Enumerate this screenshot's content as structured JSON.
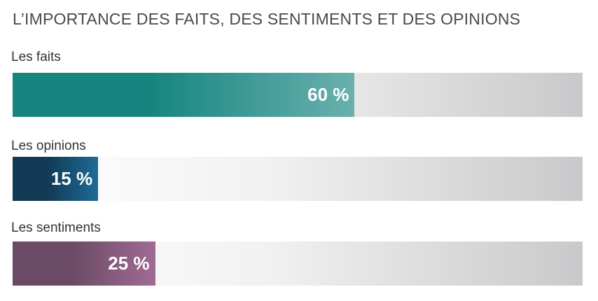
{
  "chart_data": {
    "type": "bar",
    "orientation": "horizontal",
    "title": "L’IMPORTANCE DES FAITS, DES SENTIMENTS ET DES OPINIONS",
    "xlim": [
      0,
      100
    ],
    "unit": "%",
    "categories": [
      "Les faits",
      "Les opinions",
      "Les sentiments"
    ],
    "values": [
      60,
      15,
      25
    ],
    "value_labels": [
      "60 %",
      "15 %",
      "25 %"
    ],
    "bar_colors": [
      [
        "#16857f",
        "#6ab0ae"
      ],
      [
        "#123a55",
        "#1e6b96"
      ],
      [
        "#6a4a64",
        "#a06b93"
      ]
    ],
    "track_colors": [
      "#ffffff",
      "#c9c9cb"
    ]
  }
}
